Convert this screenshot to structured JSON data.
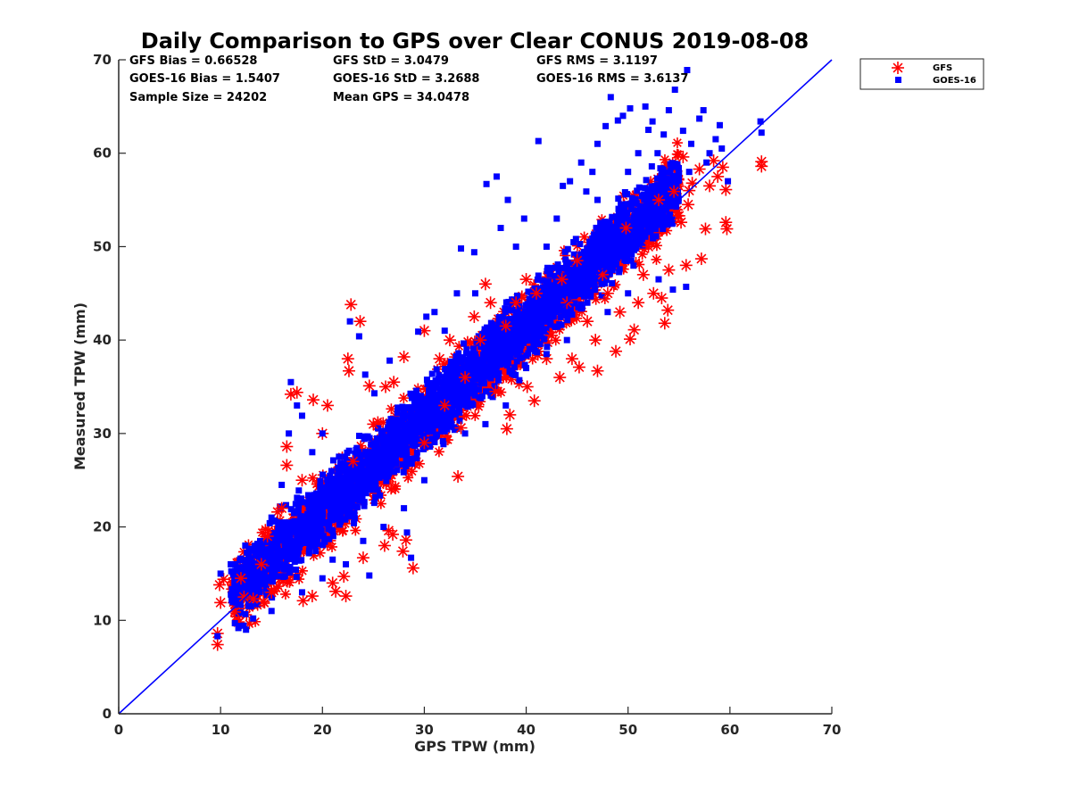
{
  "chart_data": {
    "type": "scatter",
    "title": "Daily Comparison to GPS over Clear CONUS 2019-08-08",
    "xlabel": "GPS TPW (mm)",
    "ylabel": "Measured TPW (mm)",
    "xlim": [
      0,
      70
    ],
    "ylim": [
      0,
      70
    ],
    "xticks": [
      "0",
      "10",
      "20",
      "30",
      "40",
      "50",
      "60",
      "70"
    ],
    "yticks": [
      "0",
      "10",
      "20",
      "30",
      "40",
      "50",
      "60",
      "70"
    ],
    "reference_line": {
      "name": "1:1 line",
      "x": [
        0,
        70
      ],
      "y": [
        0,
        70
      ],
      "color": "#0000ff"
    },
    "stats": [
      [
        "GFS Bias = 0.66528",
        "GFS StD = 3.0479",
        "GFS RMS = 3.1197"
      ],
      [
        "GOES-16 Bias = 1.5407",
        "GOES-16 StD = 3.2688",
        "GOES-16 RMS = 3.6137"
      ],
      [
        "Sample Size = 24202",
        "Mean GPS = 34.0478",
        ""
      ]
    ],
    "legend": {
      "position": "outside-top-right",
      "entries": [
        {
          "name": "GFS",
          "marker": "asterisk",
          "color": "#ff0000"
        },
        {
          "name": "GOES-16",
          "marker": "square",
          "color": "#0000ff"
        }
      ]
    },
    "series": [
      {
        "name": "GFS",
        "marker": "asterisk",
        "color": "#ff0000",
        "points": [
          [
            9.7,
            7.4
          ],
          [
            9.7,
            8.6
          ],
          [
            10.0,
            11.9
          ],
          [
            10.3,
            14.4
          ],
          [
            9.9,
            13.8
          ],
          [
            11.4,
            10.9
          ],
          [
            12.3,
            12.5
          ],
          [
            13.2,
            12.3
          ],
          [
            14.2,
            12.0
          ],
          [
            14.6,
            19.0
          ],
          [
            15.6,
            21.6
          ],
          [
            16.5,
            26.6
          ],
          [
            16.5,
            28.6
          ],
          [
            16.9,
            34.2
          ],
          [
            17.5,
            34.4
          ],
          [
            18.1,
            12.1
          ],
          [
            19.0,
            12.6
          ],
          [
            19.1,
            33.6
          ],
          [
            20.5,
            33.0
          ],
          [
            21.0,
            14.0
          ],
          [
            21.3,
            13.1
          ],
          [
            22.1,
            14.7
          ],
          [
            22.3,
            12.6
          ],
          [
            22.5,
            38.0
          ],
          [
            22.6,
            36.7
          ],
          [
            22.8,
            43.8
          ],
          [
            23.7,
            42.0
          ],
          [
            24.6,
            35.1
          ],
          [
            24.0,
            16.7
          ],
          [
            26.2,
            35.0
          ],
          [
            26.1,
            18.0
          ],
          [
            26.5,
            19.6
          ],
          [
            26.9,
            19.2
          ],
          [
            27.9,
            17.4
          ],
          [
            28.2,
            18.6
          ],
          [
            28.9,
            15.6
          ],
          [
            28.0,
            38.2
          ],
          [
            30.0,
            41.0
          ],
          [
            31.5,
            38.0
          ],
          [
            32.0,
            33.0
          ],
          [
            32.5,
            40.0
          ],
          [
            33.3,
            25.4
          ],
          [
            33.6,
            30.6
          ],
          [
            34.9,
            42.5
          ],
          [
            36.0,
            46.0
          ],
          [
            35.5,
            40.0
          ],
          [
            37.0,
            34.5
          ],
          [
            38.1,
            30.5
          ],
          [
            38.4,
            32.0
          ],
          [
            39.0,
            44.0
          ],
          [
            40.1,
            35.0
          ],
          [
            40.0,
            46.5
          ],
          [
            40.8,
            33.5
          ],
          [
            42.0,
            38.0
          ],
          [
            42.5,
            40.5
          ],
          [
            43.3,
            36.0
          ],
          [
            44.0,
            44.0
          ],
          [
            44.5,
            38.0
          ],
          [
            45.0,
            48.5
          ],
          [
            45.2,
            37.1
          ],
          [
            46.0,
            42.0
          ],
          [
            46.8,
            40.0
          ],
          [
            47.0,
            36.7
          ],
          [
            47.5,
            47.0
          ],
          [
            48.0,
            45.0
          ],
          [
            48.8,
            38.8
          ],
          [
            49.2,
            43.0
          ],
          [
            49.8,
            52.0
          ],
          [
            50.2,
            40.1
          ],
          [
            50.6,
            41.1
          ],
          [
            51.0,
            44.0
          ],
          [
            51.5,
            47.0
          ],
          [
            52.0,
            50.0
          ],
          [
            52.5,
            45.0
          ],
          [
            53.0,
            55.0
          ],
          [
            53.3,
            44.5
          ],
          [
            53.6,
            41.8
          ],
          [
            53.9,
            43.2
          ],
          [
            54.0,
            47.5
          ],
          [
            54.5,
            55.9
          ],
          [
            55.0,
            53.3
          ],
          [
            55.2,
            52.6
          ],
          [
            55.4,
            59.6
          ],
          [
            55.7,
            48.0
          ],
          [
            55.9,
            54.5
          ],
          [
            56.0,
            56.0
          ],
          [
            56.3,
            56.8
          ],
          [
            57.0,
            58.3
          ],
          [
            57.2,
            48.7
          ],
          [
            57.6,
            51.9
          ],
          [
            58.0,
            56.5
          ],
          [
            58.4,
            59.2
          ],
          [
            58.8,
            57.5
          ],
          [
            59.3,
            58.5
          ],
          [
            59.6,
            56.1
          ],
          [
            59.6,
            52.6
          ],
          [
            59.7,
            51.9
          ],
          [
            63.1,
            58.6
          ],
          [
            63.1,
            59.1
          ],
          [
            20.0,
            30.0
          ],
          [
            23.0,
            27.0
          ],
          [
            25.0,
            31.0
          ],
          [
            27.0,
            35.5
          ],
          [
            30.0,
            29.0
          ],
          [
            34.0,
            36.0
          ],
          [
            36.5,
            44.0
          ],
          [
            38.0,
            41.5
          ],
          [
            41.0,
            45.0
          ],
          [
            43.5,
            46.5
          ],
          [
            18.0,
            25.0
          ],
          [
            16.0,
            22.0
          ],
          [
            14.0,
            16.0
          ],
          [
            12.0,
            14.5
          ],
          [
            15.0,
            13.0
          ]
        ]
      },
      {
        "name": "GOES-16",
        "marker": "square",
        "color": "#0000ff",
        "points": [
          [
            9.7,
            8.3
          ],
          [
            10.0,
            15.0
          ],
          [
            11.0,
            16.0
          ],
          [
            11.8,
            9.4
          ],
          [
            12.5,
            9.0
          ],
          [
            13.2,
            10.2
          ],
          [
            14.0,
            18.0
          ],
          [
            15.0,
            21.0
          ],
          [
            16.0,
            24.5
          ],
          [
            16.7,
            30.0
          ],
          [
            16.9,
            35.5
          ],
          [
            17.5,
            33.0
          ],
          [
            18.0,
            31.9
          ],
          [
            19.0,
            28.0
          ],
          [
            20.0,
            30.0
          ],
          [
            21.0,
            16.5
          ],
          [
            22.3,
            16.0
          ],
          [
            22.7,
            42.0
          ],
          [
            23.6,
            40.4
          ],
          [
            24.2,
            36.3
          ],
          [
            24.6,
            14.8
          ],
          [
            25.1,
            34.3
          ],
          [
            26.6,
            37.8
          ],
          [
            28.7,
            16.7
          ],
          [
            28.3,
            19.4
          ],
          [
            29.4,
            40.9
          ],
          [
            30.2,
            42.5
          ],
          [
            31.0,
            43.0
          ],
          [
            32.0,
            41.0
          ],
          [
            33.2,
            45.0
          ],
          [
            33.6,
            49.8
          ],
          [
            34.9,
            49.4
          ],
          [
            36.1,
            56.7
          ],
          [
            37.1,
            57.5
          ],
          [
            37.5,
            52.0
          ],
          [
            38.2,
            55.0
          ],
          [
            39.8,
            53.0
          ],
          [
            41.2,
            61.3
          ],
          [
            42.0,
            50.0
          ],
          [
            43.6,
            56.5
          ],
          [
            44.3,
            57.0
          ],
          [
            45.4,
            59.0
          ],
          [
            45.9,
            55.9
          ],
          [
            46.5,
            58.0
          ],
          [
            47.0,
            61.0
          ],
          [
            47.8,
            62.9
          ],
          [
            48.3,
            66.0
          ],
          [
            49.0,
            63.5
          ],
          [
            49.5,
            64.0
          ],
          [
            50.2,
            64.8
          ],
          [
            51.0,
            60.0
          ],
          [
            51.7,
            65.0
          ],
          [
            52.0,
            62.5
          ],
          [
            52.4,
            63.4
          ],
          [
            52.9,
            60.0
          ],
          [
            53.5,
            62.0
          ],
          [
            54.0,
            64.6
          ],
          [
            54.6,
            66.8
          ],
          [
            55.4,
            62.4
          ],
          [
            55.8,
            68.9
          ],
          [
            56.2,
            61.0
          ],
          [
            57.0,
            63.7
          ],
          [
            57.4,
            64.6
          ],
          [
            58.6,
            61.5
          ],
          [
            59.0,
            63.0
          ],
          [
            59.2,
            60.5
          ],
          [
            59.8,
            57.0
          ],
          [
            63.0,
            63.4
          ],
          [
            63.1,
            62.2
          ],
          [
            55.7,
            45.7
          ],
          [
            54.4,
            45.4
          ],
          [
            53.0,
            46.5
          ],
          [
            50.0,
            45.0
          ],
          [
            48.0,
            43.0
          ],
          [
            46.0,
            44.0
          ],
          [
            44.0,
            40.0
          ],
          [
            42.0,
            38.5
          ],
          [
            40.0,
            37.0
          ],
          [
            38.0,
            33.0
          ],
          [
            36.0,
            31.0
          ],
          [
            34.0,
            30.0
          ],
          [
            30.0,
            25.0
          ],
          [
            28.0,
            22.0
          ],
          [
            26.0,
            20.0
          ],
          [
            24.0,
            18.5
          ],
          [
            20.0,
            14.5
          ],
          [
            18.0,
            13.0
          ],
          [
            15.0,
            11.0
          ],
          [
            13.0,
            11.5
          ],
          [
            35.0,
            45.0
          ],
          [
            39.0,
            50.0
          ],
          [
            43.0,
            53.0
          ],
          [
            47.0,
            55.0
          ],
          [
            50.0,
            58.0
          ],
          [
            53.0,
            56.0
          ],
          [
            56.0,
            58.0
          ],
          [
            58.0,
            60.0
          ],
          [
            57.7,
            59.0
          ]
        ]
      }
    ]
  }
}
